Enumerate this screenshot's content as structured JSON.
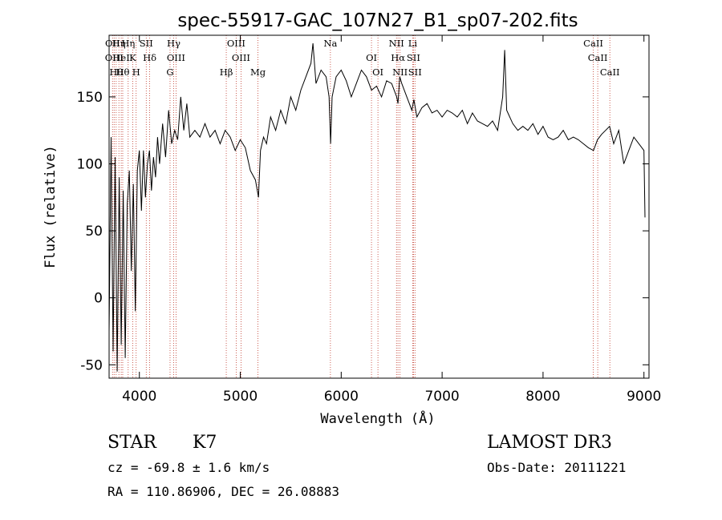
{
  "chart_data": {
    "type": "line",
    "title": "spec-55917-GAC_107N27_B1_sp07-202.fits",
    "xlabel": "Wavelength (Å)",
    "ylabel": "Flux (relative)",
    "xlim": [
      3700,
      9050
    ],
    "ylim": [
      -60,
      196
    ],
    "xticks": [
      4000,
      5000,
      6000,
      7000,
      8000,
      9000
    ],
    "yticks": [
      -50,
      0,
      50,
      100,
      150
    ],
    "grid": false,
    "series": [
      {
        "name": "spectrum",
        "x": [
          3700,
          3720,
          3740,
          3760,
          3780,
          3800,
          3820,
          3840,
          3860,
          3880,
          3900,
          3920,
          3940,
          3960,
          3980,
          4000,
          4020,
          4040,
          4060,
          4080,
          4100,
          4120,
          4140,
          4160,
          4180,
          4200,
          4230,
          4260,
          4290,
          4320,
          4350,
          4380,
          4410,
          4440,
          4470,
          4500,
          4550,
          4600,
          4650,
          4700,
          4750,
          4800,
          4850,
          4900,
          4950,
          5000,
          5050,
          5100,
          5150,
          5180,
          5200,
          5230,
          5260,
          5300,
          5350,
          5400,
          5450,
          5500,
          5550,
          5600,
          5650,
          5700,
          5720,
          5750,
          5800,
          5850,
          5880,
          5895,
          5910,
          5950,
          6000,
          6050,
          6100,
          6150,
          6200,
          6250,
          6300,
          6350,
          6400,
          6450,
          6500,
          6550,
          6563,
          6580,
          6600,
          6650,
          6700,
          6720,
          6750,
          6800,
          6850,
          6900,
          6950,
          7000,
          7050,
          7100,
          7150,
          7200,
          7250,
          7300,
          7350,
          7400,
          7450,
          7500,
          7550,
          7600,
          7620,
          7640,
          7700,
          7750,
          7800,
          7850,
          7900,
          7950,
          8000,
          8050,
          8100,
          8150,
          8200,
          8250,
          8300,
          8350,
          8400,
          8450,
          8500,
          8540,
          8580,
          8620,
          8660,
          8700,
          8750,
          8800,
          8850,
          8900,
          8950,
          9000,
          9010
        ],
        "values": [
          -25,
          120,
          -40,
          105,
          -55,
          90,
          -35,
          80,
          -45,
          70,
          95,
          20,
          85,
          -10,
          95,
          110,
          65,
          110,
          75,
          100,
          110,
          80,
          105,
          90,
          120,
          100,
          130,
          105,
          140,
          115,
          125,
          118,
          150,
          125,
          145,
          120,
          125,
          120,
          130,
          120,
          125,
          115,
          125,
          120,
          110,
          118,
          112,
          95,
          88,
          75,
          110,
          120,
          115,
          135,
          125,
          140,
          130,
          150,
          140,
          155,
          165,
          175,
          190,
          160,
          170,
          165,
          150,
          115,
          150,
          165,
          170,
          162,
          150,
          160,
          170,
          165,
          155,
          158,
          150,
          162,
          160,
          150,
          145,
          165,
          160,
          150,
          140,
          148,
          135,
          142,
          145,
          138,
          140,
          135,
          140,
          138,
          135,
          140,
          130,
          138,
          132,
          130,
          128,
          132,
          125,
          150,
          185,
          140,
          130,
          125,
          128,
          125,
          130,
          122,
          128,
          120,
          118,
          120,
          125,
          118,
          120,
          118,
          115,
          112,
          110,
          118,
          122,
          125,
          128,
          115,
          125,
          100,
          110,
          120,
          115,
          110,
          60
        ]
      }
    ],
    "lines": [
      {
        "wl": 3734,
        "label": "OII"
      },
      {
        "wl": 3750,
        "label": "OIII"
      },
      {
        "wl": 3770,
        "label": "Hθ"
      },
      {
        "wl": 3797,
        "label": "Hη"
      },
      {
        "wl": 3820,
        "label": "HeI"
      },
      {
        "wl": 3835,
        "label": "Hθ"
      },
      {
        "wl": 3889,
        "label": "Hη"
      },
      {
        "wl": 3934,
        "label": "K"
      },
      {
        "wl": 3968,
        "label": "H"
      },
      {
        "wl": 4068,
        "label": "SII"
      },
      {
        "wl": 4102,
        "label": "Hδ"
      },
      {
        "wl": 4304,
        "label": "G"
      },
      {
        "wl": 4340,
        "label": "Hγ"
      },
      {
        "wl": 4363,
        "label": "OIII"
      },
      {
        "wl": 4861,
        "label": "Hβ"
      },
      {
        "wl": 4959,
        "label": "OIII"
      },
      {
        "wl": 5007,
        "label": "OIII"
      },
      {
        "wl": 5175,
        "label": "Mg"
      },
      {
        "wl": 5893,
        "label": "Na"
      },
      {
        "wl": 6300,
        "label": "OI"
      },
      {
        "wl": 6364,
        "label": "OI"
      },
      {
        "wl": 6548,
        "label": "NII"
      },
      {
        "wl": 6563,
        "label": "Hα"
      },
      {
        "wl": 6583,
        "label": "NII"
      },
      {
        "wl": 6708,
        "label": "Li"
      },
      {
        "wl": 6716,
        "label": "SII"
      },
      {
        "wl": 6731,
        "label": "SII"
      },
      {
        "wl": 8498,
        "label": "CaII"
      },
      {
        "wl": 8542,
        "label": "CaII"
      },
      {
        "wl": 8662,
        "label": "CaII"
      }
    ]
  },
  "info": {
    "class": "STAR",
    "subclass": "K7",
    "survey": "LAMOST DR3",
    "cz": "cz = -69.8 ± 1.6 km/s",
    "obs_date": "Obs-Date: 20111221",
    "radec": "RA = 110.86906, DEC =  26.08883"
  }
}
